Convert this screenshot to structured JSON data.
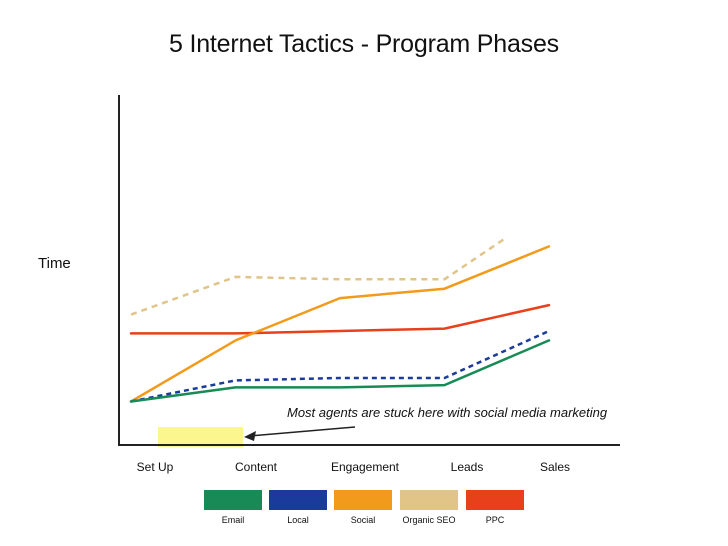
{
  "chart_data": {
    "type": "line",
    "title": "5 Internet Tactics - Program Phases",
    "ylabel": "Time",
    "xlabel": "",
    "categories": [
      "Set Up",
      "Content",
      "Engagement",
      "Leads",
      "Sales"
    ],
    "ylim": [
      0,
      100
    ],
    "grid": false,
    "legend_position": "bottom",
    "series": [
      {
        "name": "Email",
        "color": "#178a55",
        "dashed": false,
        "x": [
          0,
          1,
          2,
          3,
          4
        ],
        "y": [
          10,
          16,
          16,
          17,
          36
        ]
      },
      {
        "name": "Local",
        "color": "#1a3b9c",
        "dashed": true,
        "x": [
          0,
          1,
          2,
          3,
          4
        ],
        "y": [
          10,
          19,
          20,
          20,
          40
        ]
      },
      {
        "name": "Social",
        "color": "#f29a1c",
        "dashed": false,
        "x": [
          0,
          1,
          2,
          3,
          4
        ],
        "y": [
          10,
          36,
          54,
          58,
          76
        ]
      },
      {
        "name": "Organic SEO",
        "color": "#e0c488",
        "dashed": true,
        "x": [
          0,
          1,
          2,
          3,
          3.6
        ],
        "y": [
          47,
          63,
          62,
          62,
          80
        ]
      },
      {
        "name": "PPC",
        "color": "#e8401a",
        "dashed": false,
        "x": [
          0,
          1,
          2,
          3,
          4
        ],
        "y": [
          39,
          39,
          40,
          41,
          51
        ]
      }
    ],
    "annotation": {
      "text": "Most agents are stuck here with social media marketing",
      "highlight_span": [
        "Set Up",
        "Content"
      ]
    }
  }
}
